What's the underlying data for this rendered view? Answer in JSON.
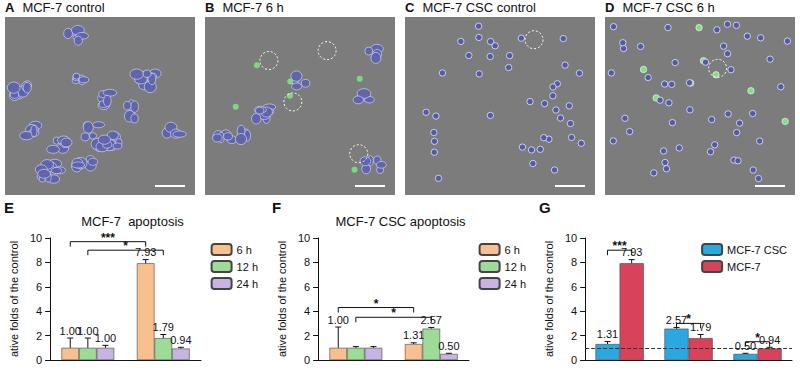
{
  "panels": [
    {
      "label": "A",
      "title": "MCF-7 control"
    },
    {
      "label": "B",
      "title": "MCF-7 6 h"
    },
    {
      "label": "C",
      "title": "MCF-7 CSC control"
    },
    {
      "label": "D",
      "title": "MCF-7 CSC 6 h"
    }
  ],
  "chart_data": [
    {
      "panel": "E",
      "type": "bar",
      "title": "MCF-7  apoptosis",
      "y_label": "ative folds of the control",
      "categories": [
        null,
        null
      ],
      "series": [
        {
          "name": "6 h",
          "color": "#f8c08f",
          "values": [
            1.0,
            7.93
          ],
          "value_labels": [
            "1.00",
            "7.93"
          ],
          "errors": [
            0.8,
            0.3
          ]
        },
        {
          "name": "12 h",
          "color": "#9fdb98",
          "values": [
            1.0,
            1.79
          ],
          "value_labels": [
            "1.00",
            "1.79"
          ],
          "errors": [
            0.8,
            0.3
          ]
        },
        {
          "name": "24 h",
          "color": "#c8b4e0",
          "values": [
            1.0,
            0.94
          ],
          "value_labels": [
            "1.00",
            "0.94"
          ],
          "errors": [
            0.2,
            0.1
          ]
        }
      ],
      "ylim": [
        0,
        10
      ],
      "yticks": [
        0,
        2,
        4,
        6,
        8,
        10
      ],
      "legend": "right",
      "data_labels": true,
      "tick_labels": "y",
      "annotations": [
        {
          "text": "***",
          "y": 9.7,
          "from": [
            0,
            "6 h"
          ],
          "to": [
            1,
            "6 h"
          ]
        },
        {
          "text": "*",
          "y": 9.0,
          "from": [
            0,
            "12 h"
          ],
          "to": [
            1,
            "12 h"
          ]
        }
      ]
    },
    {
      "panel": "F",
      "type": "bar",
      "title": "MCF-7 CSC apoptosis",
      "y_label": "ative folds of the control",
      "categories": [
        null,
        null
      ],
      "series": [
        {
          "name": "6 h",
          "color": "#f8c08f",
          "values": [
            1.0,
            1.31
          ],
          "value_labels": [
            "1.00",
            "1.31"
          ],
          "errors": [
            1.7,
            0.1
          ]
        },
        {
          "name": "12 h",
          "color": "#9fdb98",
          "values": [
            1.0,
            2.57
          ],
          "value_labels": [
            null,
            "2.57"
          ],
          "errors": [
            0.1,
            0.1
          ]
        },
        {
          "name": "24 h",
          "color": "#c8b4e0",
          "values": [
            1.0,
            0.5
          ],
          "value_labels": [
            null,
            "0.50"
          ],
          "errors": [
            0.1,
            0.05
          ]
        }
      ],
      "ylim": [
        0,
        10
      ],
      "yticks": [
        0,
        2,
        4,
        6,
        8,
        10
      ],
      "legend": "right",
      "data_labels": true,
      "tick_labels": "y",
      "annotations": [
        {
          "text": "*",
          "y": 4.3,
          "from": [
            0,
            "6 h"
          ],
          "to": [
            1,
            "6 h"
          ]
        },
        {
          "text": "*",
          "y": 3.5,
          "from": [
            0,
            "12 h"
          ],
          "to": [
            1,
            "12 h"
          ]
        }
      ]
    },
    {
      "panel": "G",
      "type": "bar",
      "y_label": "ative folds of the control",
      "categories": [
        null,
        null,
        null
      ],
      "series": [
        {
          "name": "MCF-7 CSC",
          "color": "#29a9e0",
          "values": [
            1.31,
            2.57,
            0.5
          ],
          "value_labels": [
            "1.31",
            "2.57",
            "0.50"
          ],
          "errors": [
            0.2,
            0.1,
            0.05
          ]
        },
        {
          "name": "MCF-7",
          "color": "#d8435a",
          "values": [
            7.93,
            1.79,
            0.94
          ],
          "value_labels": [
            "7.93",
            "1.79",
            "0.94"
          ],
          "errors": [
            0.3,
            0.3,
            0.1
          ]
        }
      ],
      "ylim": [
        0,
        10
      ],
      "yticks": [
        0,
        2,
        4,
        6,
        8,
        10
      ],
      "legend": "top-right",
      "data_labels": true,
      "tick_labels": "y",
      "reference_line": 1,
      "annotations": [
        {
          "text": "***",
          "y": 9.0,
          "from": [
            0,
            "MCF-7 CSC"
          ],
          "to": [
            0,
            "MCF-7"
          ]
        },
        {
          "text": "*",
          "y": 3.0,
          "from": [
            1,
            "MCF-7 CSC"
          ],
          "to": [
            1,
            "MCF-7"
          ]
        },
        {
          "text": "*",
          "y": 1.5,
          "from": [
            2,
            "MCF-7 CSC"
          ],
          "to": [
            2,
            "MCF-7"
          ]
        }
      ]
    }
  ]
}
